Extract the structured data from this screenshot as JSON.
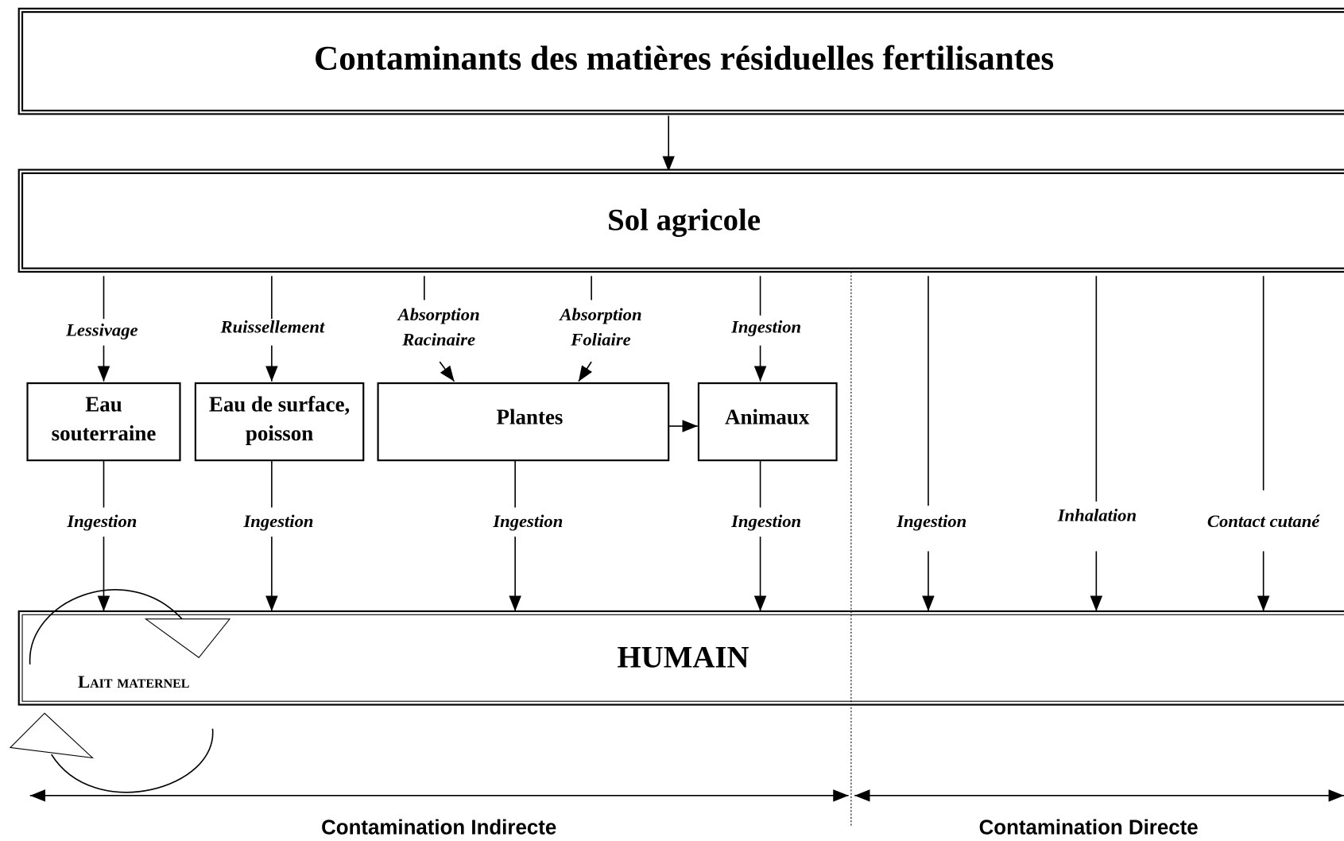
{
  "header": {
    "title": "Contaminants des matières résiduelles fertilisantes"
  },
  "soil": {
    "label": "Sol agricole"
  },
  "upper_labels": [
    [
      "Lessivage"
    ],
    [
      "Ruissellement"
    ],
    [
      "Absorption",
      "Racinaire"
    ],
    [
      "Absorption",
      "Foliaire"
    ],
    [
      "Ingestion"
    ]
  ],
  "nodes": [
    {
      "label": [
        "Eau",
        "souterraine"
      ]
    },
    {
      "label": [
        "Eau de surface,",
        "poisson"
      ]
    },
    {
      "label": [
        "Plantes"
      ]
    },
    {
      "label": [
        "Animaux"
      ]
    }
  ],
  "lower_labels": [
    "Ingestion",
    "Ingestion",
    "Ingestion",
    "Ingestion"
  ],
  "direct_labels": [
    "Ingestion",
    "Inhalation",
    "Contact cutané"
  ],
  "human": {
    "label": "HUMAIN",
    "breast_milk": "Lait maternel"
  },
  "footer": {
    "indirect": "Contamination Indirecte",
    "direct": "Contamination Directe"
  }
}
